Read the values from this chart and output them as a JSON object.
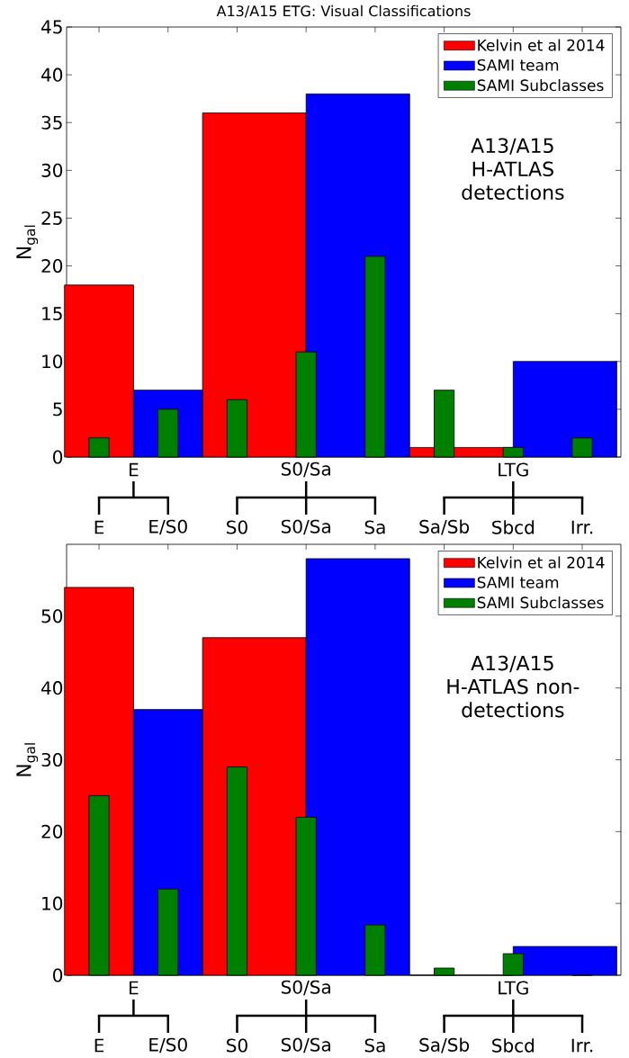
{
  "chart_data": [
    {
      "type": "bar",
      "title": "A13/A15 ETG: Visual Classifications",
      "ylabel": "N$_{gal}$",
      "categories": [
        "E",
        "E/S0",
        "S0",
        "S0/Sa",
        "Sa",
        "Sa/Sb",
        "Sbcd",
        "Irr."
      ],
      "ylim": [
        0,
        45
      ],
      "yticks": [
        0,
        5,
        10,
        15,
        20,
        25,
        30,
        35,
        40,
        45
      ],
      "series": [
        {
          "name": "Kelvin et al 2014",
          "color": "#ff0000",
          "values": [
            18,
            null,
            36,
            null,
            null,
            1,
            null,
            null
          ]
        },
        {
          "name": "SAMI team",
          "color": "#0000ff",
          "values": [
            null,
            7,
            null,
            null,
            38,
            null,
            null,
            10
          ]
        },
        {
          "name": "SAMI Subclasses",
          "color": "#008000",
          "values": [
            2,
            5,
            6,
            11,
            21,
            7,
            1,
            2
          ]
        }
      ],
      "annotations": [
        {
          "text": "E"
        },
        {
          "text": "S0/Sa"
        },
        {
          "text": "LTG"
        },
        "A13/A15 H-ATLAS detections"
      ],
      "legend": "top right"
    },
    {
      "type": "bar",
      "ylabel": "N$_{gal}$",
      "categories": [
        "E",
        "E/S0",
        "S0",
        "S0/Sa",
        "Sa",
        "Sa/Sb",
        "Sbcd",
        "Irr."
      ],
      "ylim": [
        0,
        60
      ],
      "yticks": [
        0,
        10,
        20,
        30,
        40,
        50
      ],
      "series": [
        {
          "name": "Kelvin et al 2014",
          "color": "#ff0000",
          "values": [
            54,
            null,
            47,
            null,
            null,
            0,
            null,
            null
          ]
        },
        {
          "name": "SAMI team",
          "color": "#0000ff",
          "values": [
            null,
            37,
            null,
            null,
            58,
            null,
            null,
            4
          ]
        },
        {
          "name": "SAMI Subclasses",
          "color": "#008000",
          "values": [
            25,
            12,
            29,
            22,
            7,
            1,
            3,
            0
          ]
        }
      ],
      "annotations": [
        {
          "text": "E"
        },
        {
          "text": "S0/Sa"
        },
        {
          "text": "LTG"
        },
        "A13/A15 H-ATLAS non-detections"
      ],
      "legend": "top right"
    }
  ]
}
